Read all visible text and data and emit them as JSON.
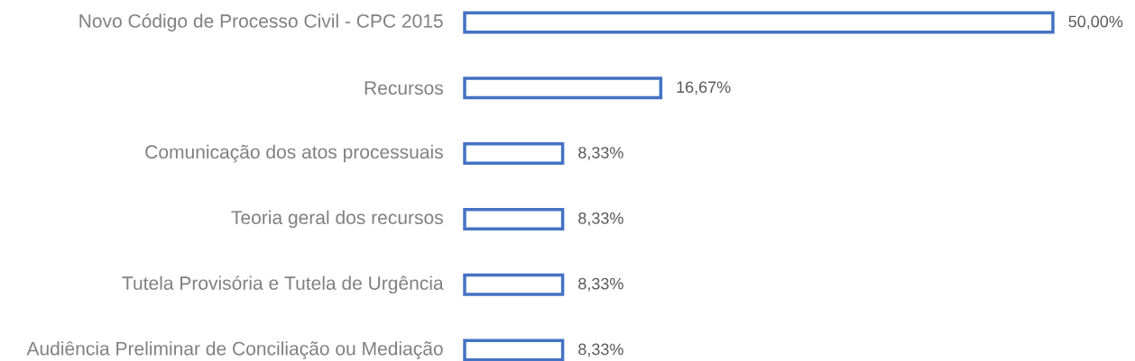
{
  "chart_data": {
    "type": "bar",
    "orientation": "horizontal",
    "categories": [
      "Novo Código de Processo Civil - CPC 2015",
      "Recursos",
      "Comunicação dos atos processuais",
      "Teoria geral dos recursos",
      "Tutela Provisória e Tutela de Urgência",
      "Audiência Preliminar de Conciliação ou Mediação"
    ],
    "values": [
      50.0,
      16.67,
      8.33,
      8.33,
      8.33,
      8.33
    ],
    "color": "#4472c4",
    "value_labels": [
      "50,00%",
      "16,67%",
      "8,33%",
      "8,33%",
      "8,33%",
      "8,33%"
    ],
    "xlim": [
      0,
      50
    ],
    "tick_labels": "y"
  }
}
